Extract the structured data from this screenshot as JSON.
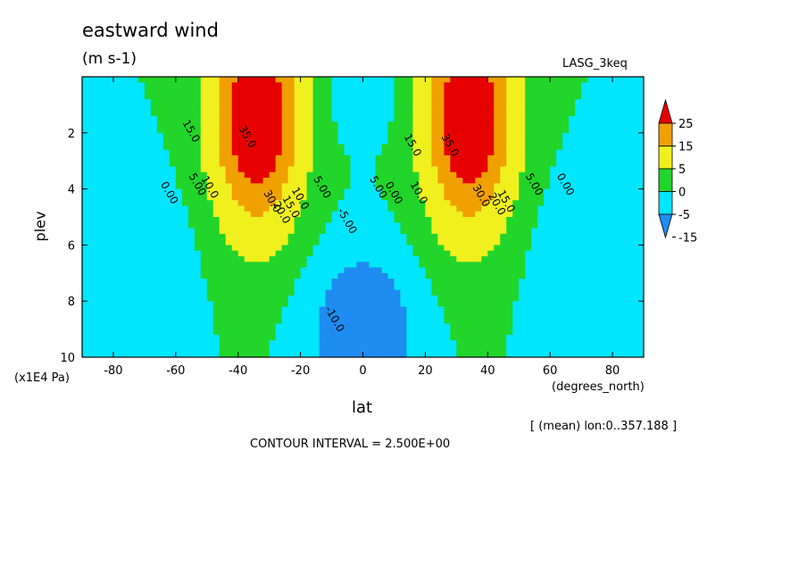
{
  "chart_data": {
    "type": "heatmap",
    "title": "eastward wind",
    "units": "(m s-1)",
    "experiment_label": "LASG_3keq",
    "xlabel": "lat",
    "xunits": "(degrees_north)",
    "ylabel": "plev",
    "yunits": "(x1E4 Pa)",
    "xlim": [
      -90,
      90
    ],
    "ylim": [
      0,
      10
    ],
    "y_inverted": true,
    "xticks": [
      "-80",
      "-60",
      "-40",
      "-20",
      "0",
      "20",
      "40",
      "60",
      "80"
    ],
    "yticks": [
      "2",
      "4",
      "6",
      "8",
      "10"
    ],
    "averaging_note": "[ (mean) lon:0..357.188 ]",
    "contour_interval_text": "CONTOUR INTERVAL = 2.500E+00",
    "colorbar": {
      "labels": [
        "25",
        "15",
        "5",
        "0",
        "-5",
        "-15"
      ],
      "levels": [
        -15,
        -5,
        0,
        5,
        15,
        25
      ],
      "colors": [
        "#1e8cf0",
        "#00e6ff",
        "#22d52a",
        "#f0f01e",
        "#f0a000",
        "#e60000"
      ]
    },
    "jets": [
      {
        "lat": -34,
        "plev": 1.5,
        "max_value": 37.5
      },
      {
        "lat": 34,
        "plev": 1.5,
        "max_value": 37.5
      }
    ],
    "easterly_minimum": {
      "lat": 0,
      "plev": 9,
      "value": -12.5
    },
    "contour_labels": [
      {
        "text": "15.0",
        "lat": -56,
        "plev": 2.0
      },
      {
        "text": "5.00",
        "lat": -54,
        "plev": 3.9
      },
      {
        "text": "0.00",
        "lat": -63,
        "plev": 4.2
      },
      {
        "text": "10.0",
        "lat": -50,
        "plev": 4.0
      },
      {
        "text": "35.0",
        "lat": -38,
        "plev": 2.2
      },
      {
        "text": "30.0",
        "lat": -30,
        "plev": 4.5
      },
      {
        "text": "20.0",
        "lat": -27,
        "plev": 4.9
      },
      {
        "text": "15.0",
        "lat": -24,
        "plev": 4.7
      },
      {
        "text": "10.0",
        "lat": -21,
        "plev": 4.4
      },
      {
        "text": "5.00",
        "lat": -14,
        "plev": 4.0
      },
      {
        "text": "-5.00",
        "lat": -6,
        "plev": 5.2
      },
      {
        "text": "-10.0",
        "lat": -10,
        "plev": 8.7
      },
      {
        "text": "0.00",
        "lat": 9,
        "plev": 4.2
      },
      {
        "text": "5.00",
        "lat": 4,
        "plev": 4.0
      },
      {
        "text": "10.0",
        "lat": 17,
        "plev": 4.2
      },
      {
        "text": "15.0",
        "lat": 15,
        "plev": 2.5
      },
      {
        "text": "35.0",
        "lat": 27,
        "plev": 2.5
      },
      {
        "text": "30.0",
        "lat": 37,
        "plev": 4.3
      },
      {
        "text": "20.0",
        "lat": 42,
        "plev": 4.6
      },
      {
        "text": "15.0",
        "lat": 45,
        "plev": 4.5
      },
      {
        "text": "5.00",
        "lat": 54,
        "plev": 3.9
      },
      {
        "text": "0.00",
        "lat": 64,
        "plev": 3.9
      }
    ]
  }
}
